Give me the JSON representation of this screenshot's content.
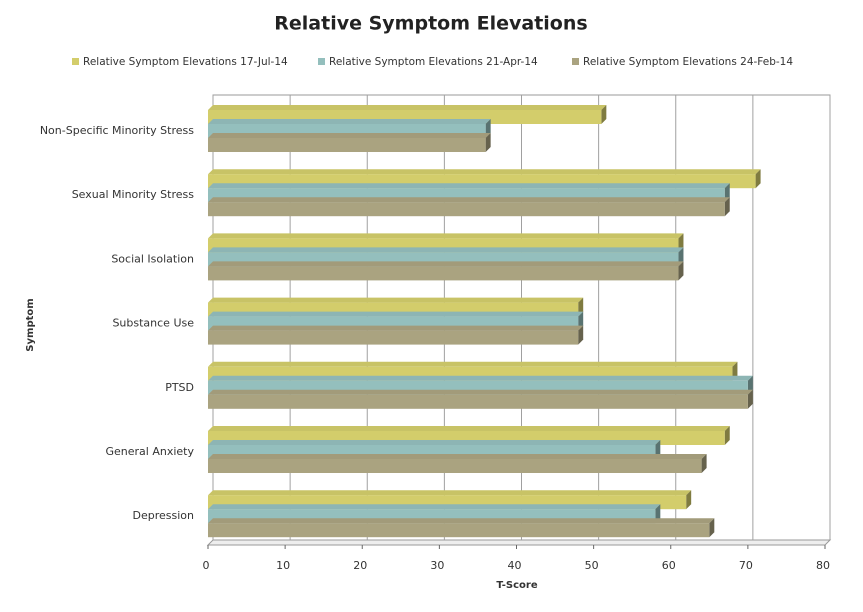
{
  "chart_data": {
    "type": "bar",
    "orientation": "horizontal",
    "title": "Relative Symptom Elevations",
    "x_label": "T-Score",
    "y_label": "Symptom",
    "categories": [
      "Non-Specific Minority Stress",
      "Sexual Minority Stress",
      "Social Isolation",
      "Substance Use",
      "PTSD",
      "General Anxiety",
      "Depression"
    ],
    "series": [
      {
        "name": "Relative Symptom Elevations 17-Jul-14",
        "color": "#d3cd6b",
        "values": [
          51,
          71,
          61,
          48,
          68,
          67,
          62
        ]
      },
      {
        "name": "Relative Symptom Elevations 21-Apr-14",
        "color": "#94bfbd",
        "values": [
          36,
          67,
          61,
          48,
          70,
          58,
          58
        ]
      },
      {
        "name": "Relative Symptom Elevations 24-Feb-14",
        "color": "#aaa380",
        "values": [
          36,
          67,
          61,
          48,
          70,
          64,
          65
        ]
      }
    ],
    "xlim": [
      0,
      80
    ],
    "xticks": [
      0,
      10,
      20,
      30,
      40,
      50,
      60,
      70,
      80
    ],
    "grid": true,
    "legend": "top"
  }
}
